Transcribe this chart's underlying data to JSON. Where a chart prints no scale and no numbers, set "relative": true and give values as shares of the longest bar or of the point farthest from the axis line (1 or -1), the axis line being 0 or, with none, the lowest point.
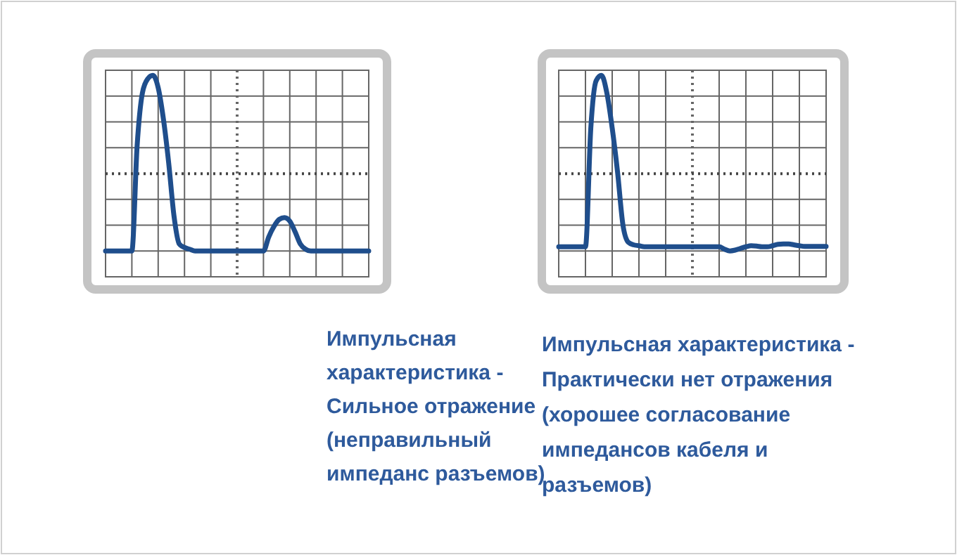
{
  "chart_data": [
    {
      "type": "line",
      "relative": true,
      "grid": true,
      "ref_lines": [
        {
          "axis": "y",
          "value": 0.44,
          "line_style": "dotted",
          "color": "#444444"
        }
      ],
      "categories": [
        null,
        null,
        null,
        null,
        null,
        null,
        null,
        null,
        null,
        null,
        null,
        null,
        null,
        null,
        null,
        null,
        null,
        null,
        null,
        null,
        null,
        null,
        null,
        null,
        null,
        null,
        null,
        null,
        null,
        null,
        null,
        null,
        null,
        null,
        null,
        null,
        null,
        null,
        null,
        null,
        null,
        null,
        null,
        null,
        null,
        null,
        null,
        null,
        null,
        null,
        null
      ],
      "series": [
        {
          "color": "#1f4e8c",
          "values": [
            0,
            0,
            0,
            0,
            0,
            0,
            0.6,
            0.9,
            0.98,
            1,
            0.93,
            0.75,
            0.5,
            0.2,
            0.04,
            0.02,
            0.01,
            0,
            0,
            0,
            0,
            0,
            0,
            0,
            0,
            0,
            0,
            0,
            0,
            0,
            0,
            0.08,
            0.14,
            0.18,
            0.19,
            0.17,
            0.11,
            0.04,
            0.01,
            0,
            0,
            0,
            0,
            0,
            0,
            0,
            0,
            0,
            0,
            0,
            0
          ]
        }
      ],
      "annotations": [
        "Импульсная\nхарактеристика -\nСильное отражение\n(неправильный\nимпеданс разъемов)"
      ]
    },
    {
      "type": "line",
      "relative": true,
      "grid": true,
      "ref_lines": [
        {
          "axis": "y",
          "value": 0.44,
          "line_style": "dotted",
          "color": "#444444"
        }
      ],
      "categories": [
        null,
        null,
        null,
        null,
        null,
        null,
        null,
        null,
        null,
        null,
        null,
        null,
        null,
        null,
        null,
        null,
        null,
        null,
        null,
        null,
        null,
        null,
        null,
        null,
        null,
        null,
        null,
        null,
        null,
        null,
        null,
        null,
        null,
        null,
        null,
        null,
        null,
        null,
        null,
        null,
        null,
        null,
        null,
        null,
        null,
        null,
        null,
        null,
        null,
        null,
        null
      ],
      "series": [
        {
          "color": "#1f4e8c",
          "values": [
            0.024,
            0.024,
            0.024,
            0.024,
            0.024,
            0.024,
            0.7,
            0.97,
            1,
            0.9,
            0.7,
            0.45,
            0.15,
            0.05,
            0.035,
            0.03,
            0.024,
            0.024,
            0.024,
            0.024,
            0.024,
            0.024,
            0.024,
            0.024,
            0.024,
            0.024,
            0.024,
            0.024,
            0.024,
            0.024,
            0.024,
            0.01,
            0,
            0.005,
            0.015,
            0.024,
            0.03,
            0.028,
            0.024,
            0.024,
            0.03,
            0.038,
            0.04,
            0.04,
            0.035,
            0.03,
            0.026,
            0.026,
            0.026,
            0.026,
            0.026
          ]
        }
      ],
      "annotations": [
        "Импульсная характеристика -\nПрактически нет отражения\n(хорошее согласование\nимпедансов кабеля и\nразъемов)"
      ]
    }
  ]
}
